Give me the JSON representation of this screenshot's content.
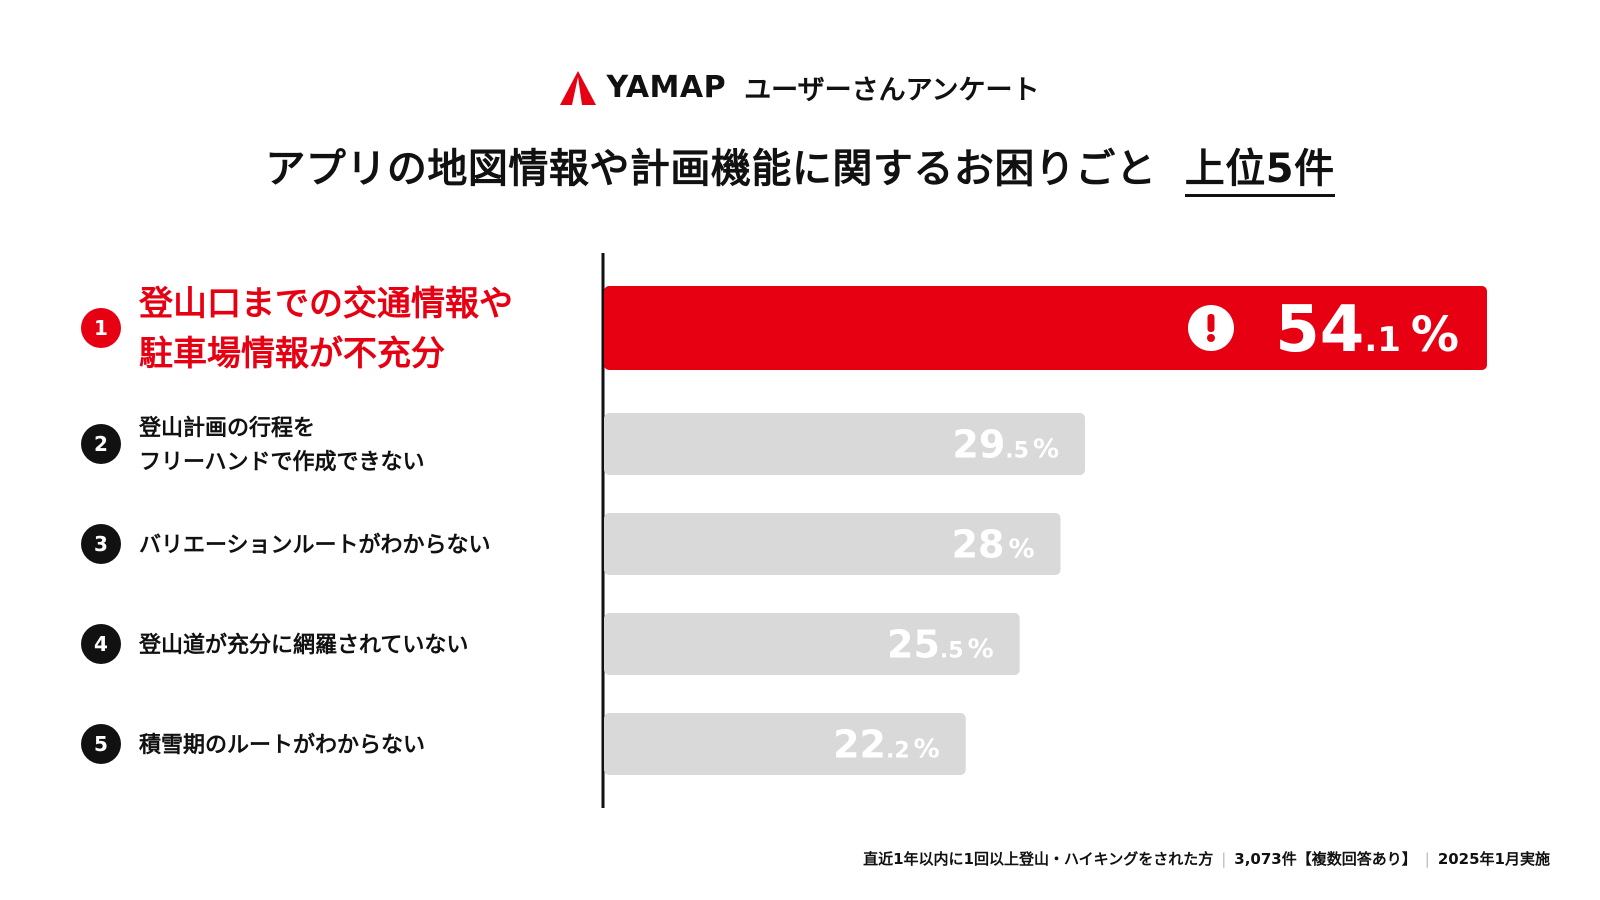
{
  "header": {
    "brand_name": "YAMAP",
    "brand_subtitle": "ユーザーさんアンケート",
    "title_main": "アプリの地図情報や計画機能に関するお困りごと",
    "title_emphasis": "上位5件"
  },
  "chart_data": {
    "type": "bar",
    "orientation": "horizontal",
    "title": "アプリの地図情報や計画機能に関するお困りごと 上位5件",
    "unit": "%",
    "xlim": [
      0,
      100
    ],
    "categories": [
      [
        "登山口までの交通情報や",
        "駐車場情報が不充分"
      ],
      [
        "登山計画の行程を",
        "フリーハンドで作成できない"
      ],
      [
        "バリエーションルートがわからない"
      ],
      [
        "登山道が充分に網羅されていない"
      ],
      [
        "積雪期のルートがわからない"
      ]
    ],
    "ranks": [
      "1",
      "2",
      "3",
      "4",
      "5"
    ],
    "values": [
      54.1,
      29.5,
      28,
      25.5,
      22.2
    ],
    "value_labels": [
      {
        "int": "54",
        "dec": ".1",
        "unit": "%"
      },
      {
        "int": "29",
        "dec": ".5",
        "unit": "%"
      },
      {
        "int": "28",
        "dec": "",
        "unit": "%"
      },
      {
        "int": "25",
        "dec": ".5",
        "unit": "%"
      },
      {
        "int": "22",
        "dec": ".2",
        "unit": "%"
      }
    ],
    "highlight_index": 0,
    "highlight_icon": "exclamation-icon",
    "colors": {
      "highlight": "#E60012",
      "bar": "#D9D9D9",
      "bar_label": "#FFFFFF",
      "rank_badge": "#111111",
      "axis": "#111111"
    }
  },
  "footnote": {
    "sample": "直近1年以内に1回以上登山・ハイキングをされた方",
    "count": "3,073件【複数回答あり】",
    "date": "2025年1月実施"
  }
}
